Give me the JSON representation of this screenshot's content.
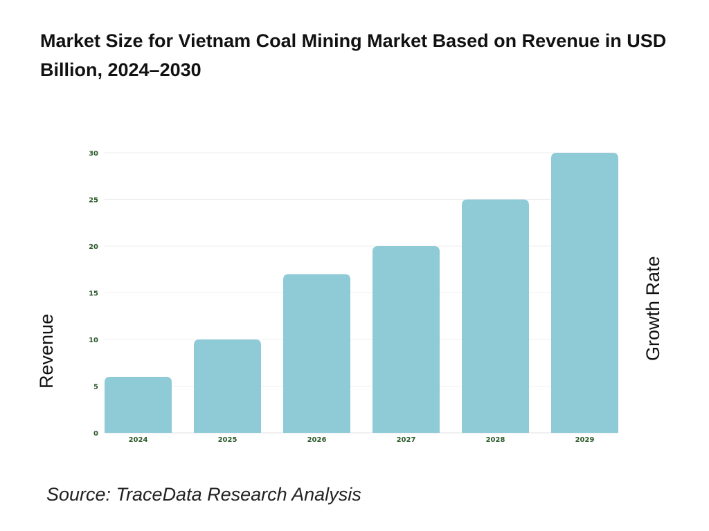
{
  "title": "Market Size for Vietnam Coal Mining Market Based on Revenue in USD Billion, 2024–2030",
  "source": "Source: TraceData Research Analysis",
  "colors": {
    "bar": "#8ecbd7",
    "tick_text": "#2a5a2a",
    "grid": "#eeeeee"
  },
  "chart_data": {
    "type": "bar",
    "title": "Market Size for Vietnam Coal Mining Market Based on Revenue in USD Billion, 2024–2030",
    "categories": [
      "2024",
      "2025",
      "2026",
      "2027",
      "2028",
      "2029"
    ],
    "values": [
      6,
      10,
      17,
      20,
      25,
      30
    ],
    "ylabel": "Revenue",
    "y2label": "Growth Rate",
    "xlabel": "",
    "ylim": [
      0,
      30
    ],
    "yticks": [
      0,
      5,
      10,
      15,
      20,
      25,
      30
    ],
    "grid": true,
    "legend": "none"
  }
}
